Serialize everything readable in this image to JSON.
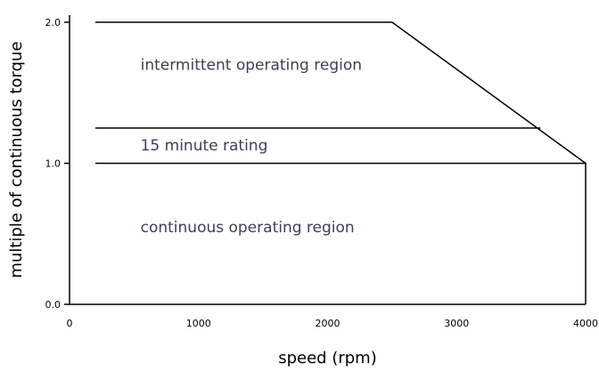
{
  "chart_data": {
    "type": "line",
    "title": "",
    "xlabel": "speed (rpm)",
    "ylabel": "multiple of continuous torque",
    "xlim": [
      0,
      4000
    ],
    "ylim": [
      0,
      2.0
    ],
    "x_ticks": [
      0,
      1000,
      2000,
      3000,
      4000
    ],
    "x_tick_labels": [
      "0",
      "1000",
      "2000",
      "3000",
      "4000"
    ],
    "y_ticks": [
      0.0,
      1.0,
      2.0
    ],
    "y_tick_labels": [
      "0.0",
      "1.0",
      "2.0"
    ],
    "grid": false,
    "legend": "none",
    "series": [
      {
        "key": "intermittent",
        "x": [
          200,
          2500,
          4000
        ],
        "y": [
          2.0,
          2.0,
          1.0
        ]
      },
      {
        "key": "fifteen",
        "x": [
          200,
          3650
        ],
        "y": [
          1.25,
          1.25
        ]
      },
      {
        "key": "continuous",
        "x": [
          200,
          4000,
          4000
        ],
        "y": [
          1.0,
          1.0,
          0.0
        ]
      }
    ],
    "annotations": [
      {
        "key": "intermittent",
        "text": "intermittent operating region",
        "x": 550,
        "y": 1.7
      },
      {
        "key": "fifteen",
        "text": "15 minute rating",
        "x": 550,
        "y": 1.13
      },
      {
        "key": "continuous",
        "text": "continuous operating region",
        "x": 550,
        "y": 0.55
      }
    ]
  }
}
